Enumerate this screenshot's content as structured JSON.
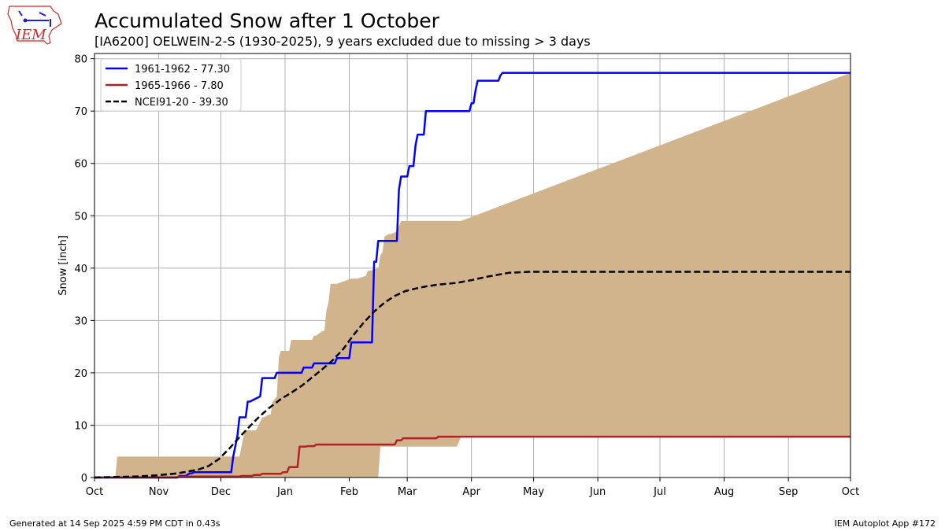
{
  "header": {
    "title": "Accumulated Snow after 1 October",
    "subtitle": "[IA6200] OELWEIN-2-S (1930-2025), 9 years excluded due to missing > 3 days",
    "logo_text": "IEM"
  },
  "footer": {
    "generated": "Generated at 14 Sep 2025 4:59 PM CDT in 0.43s",
    "app": "IEM Autoplot App #172"
  },
  "colors": {
    "range_fill": "#d2b48c",
    "series_1961": "#0000ff",
    "series_1965": "#b22222",
    "normal": "#000000",
    "grid": "#b0b0b0",
    "logo_red": "#d62728",
    "logo_blue": "#1f1fd0"
  },
  "chart_data": {
    "type": "line",
    "xlabel": "",
    "ylabel": "Snow [inch]",
    "x_ticks": [
      "Oct",
      "Nov",
      "Dec",
      "Jan",
      "Feb",
      "Mar",
      "Apr",
      "May",
      "Jun",
      "Jul",
      "Aug",
      "Sep",
      "Oct"
    ],
    "y_ticks": [
      0,
      10,
      20,
      30,
      40,
      50,
      60,
      70,
      80
    ],
    "ylim": [
      0,
      81
    ],
    "x_unit": "days after 1 October",
    "xlim": [
      0,
      365
    ],
    "grid": true,
    "legend_position": "top-left",
    "range_band": {
      "x": [
        0,
        10,
        11,
        70,
        72,
        73,
        77,
        78,
        81,
        82,
        84,
        85,
        86,
        88,
        89,
        90,
        94,
        95,
        105,
        106,
        107,
        110,
        111,
        112,
        113,
        114,
        116,
        117,
        124,
        125,
        126,
        127,
        131,
        132,
        133,
        137,
        138,
        139,
        140,
        142,
        143,
        146,
        147,
        148,
        149,
        150,
        152,
        155,
        156,
        162,
        163,
        175,
        177,
        365
      ],
      "upper": [
        0,
        0,
        4,
        4,
        8,
        9,
        9,
        9,
        11.5,
        11.5,
        12,
        12,
        14.5,
        15.5,
        23,
        24.2,
        24.2,
        26.3,
        26.3,
        27.1,
        27.1,
        28,
        28,
        32,
        33.5,
        37,
        37,
        37,
        38,
        38,
        38,
        38,
        38.5,
        39.5,
        39.5,
        40,
        42.5,
        43,
        46,
        46.5,
        46.5,
        47,
        48,
        49,
        49,
        49,
        49,
        49,
        49,
        49,
        49,
        49,
        49,
        77.3
      ],
      "lower": [
        0,
        0,
        0,
        0,
        0,
        0,
        0,
        0,
        0,
        0,
        0,
        0,
        0,
        0,
        0,
        0,
        0,
        0,
        0,
        0,
        0,
        0,
        0,
        0,
        0,
        0,
        0,
        0,
        0,
        0,
        0,
        0,
        0,
        0,
        0,
        0,
        5.9,
        5.9,
        5.9,
        5.9,
        5.9,
        5.9,
        5.9,
        5.9,
        5.9,
        5.9,
        5.9,
        5.9,
        5.9,
        5.9,
        5.9,
        5.9,
        7.8,
        7.8
      ]
    },
    "series": [
      {
        "name": "1961-1962 - 77.30",
        "style": "solid",
        "x": [
          0,
          40,
          41,
          44,
          46,
          47,
          48,
          66,
          67,
          69,
          70,
          72,
          73,
          74,
          75,
          80,
          81,
          82,
          83,
          87,
          88,
          90,
          91,
          92,
          93,
          100,
          101,
          105,
          106,
          110,
          111,
          116,
          117,
          123,
          124,
          125,
          126,
          128,
          130,
          134,
          135,
          136,
          137,
          139,
          140,
          146,
          147,
          148,
          149,
          150,
          151,
          152,
          154,
          155,
          156,
          159,
          160,
          162,
          163,
          166,
          167,
          168,
          169,
          181,
          182,
          183,
          184,
          185,
          195,
          196,
          197,
          365
        ],
        "y": [
          0,
          0,
          0.3,
          0.3,
          0.8,
          0.8,
          1,
          1,
          4,
          8,
          11.5,
          11.5,
          11.5,
          14.5,
          14.5,
          15.5,
          19,
          19,
          19,
          19,
          20,
          20,
          20,
          20,
          20,
          20,
          21,
          21,
          21.8,
          21.8,
          21.8,
          21.8,
          22.8,
          22.8,
          25.8,
          25.8,
          25.8,
          25.8,
          25.8,
          25.8,
          41.2,
          41.2,
          45.2,
          45.2,
          45.2,
          45.2,
          55,
          57.5,
          57.5,
          57.5,
          57.5,
          59.5,
          59.5,
          63.5,
          65.5,
          65.5,
          70,
          70,
          70,
          70,
          70,
          70,
          70,
          70,
          71.5,
          71.5,
          74,
          75.8,
          75.8,
          76.8,
          77.3,
          77.3
        ]
      },
      {
        "name": "1965-1966 - 7.80",
        "style": "solid",
        "x": [
          0,
          40,
          41,
          70,
          71,
          76,
          77,
          80,
          81,
          90,
          91,
          93,
          94,
          98,
          99,
          102,
          103,
          106,
          107,
          108,
          109,
          145,
          146,
          148,
          149,
          160,
          161,
          165,
          166,
          365
        ],
        "y": [
          0,
          0,
          0.2,
          0.2,
          0.3,
          0.3,
          0.5,
          0.5,
          0.7,
          0.7,
          1,
          1,
          2,
          2,
          5.9,
          5.9,
          6,
          6,
          6.3,
          6.3,
          6.3,
          6.3,
          7.1,
          7.1,
          7.5,
          7.5,
          7.5,
          7.5,
          7.8,
          7.8
        ]
      },
      {
        "name": "NCEI91-20 - 39.30",
        "style": "dashed",
        "x": [
          0,
          10,
          20,
          30,
          40,
          50,
          55,
          60,
          65,
          70,
          75,
          80,
          85,
          90,
          95,
          100,
          105,
          110,
          115,
          120,
          125,
          130,
          135,
          140,
          145,
          150,
          155,
          160,
          165,
          170,
          175,
          182,
          190,
          200,
          210,
          213,
          220,
          365
        ],
        "y": [
          0,
          0.1,
          0.2,
          0.4,
          0.8,
          1.5,
          2.2,
          3.5,
          5.5,
          7.7,
          9.8,
          11.8,
          13.5,
          15,
          16.2,
          17.5,
          19.1,
          20.7,
          22.4,
          24.5,
          27.2,
          29.6,
          31.7,
          33.4,
          34.7,
          35.6,
          36.1,
          36.5,
          36.8,
          37,
          37.2,
          37.7,
          38.4,
          39.1,
          39.3,
          39.3,
          39.3,
          39.3
        ]
      }
    ]
  }
}
